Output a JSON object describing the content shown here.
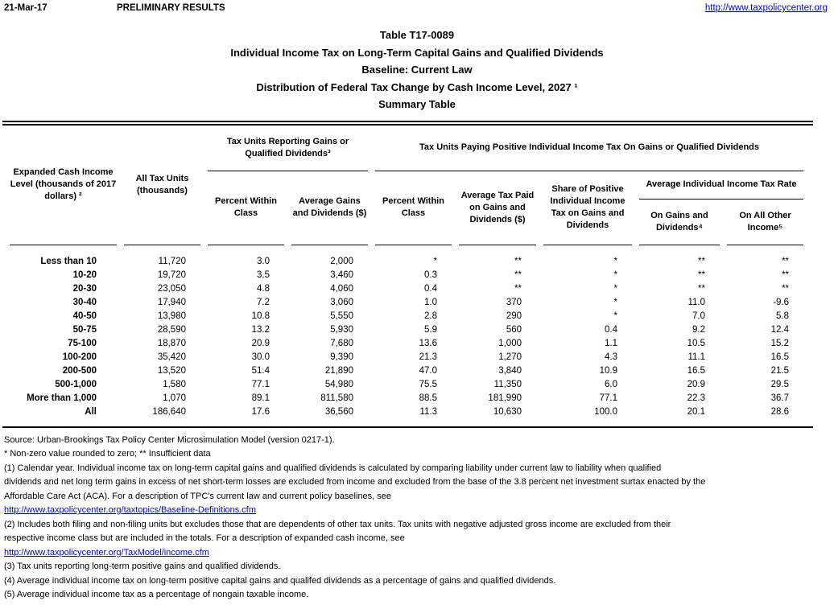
{
  "page": {
    "date": "21-Mar-17",
    "status": "PRELIMINARY RESULTS",
    "site_url": "http://www.taxpolicycenter.org"
  },
  "colors": {
    "link": "#0000EE",
    "text": "#000000",
    "background": "#FFFFFF"
  },
  "title": {
    "line1": "Table T17-0089",
    "line2": "Individual Income Tax on Long-Term Capital Gains and Qualified Dividends",
    "line3": "Baseline: Current Law",
    "line4": "Distribution of Federal Tax Change by Cash Income Level, 2027 ¹",
    "line5": "Summary Table"
  },
  "table": {
    "group_headers": {
      "reporting": "Tax Units Reporting Gains or Qualified Dividends³",
      "paying": "Tax Units Paying Positive Individual Income Tax On Gains or Qualified Dividends",
      "avg_rate": "Average Individual Income Tax Rate"
    },
    "columns": {
      "income_level": "Expanded Cash Income Level (thousands of 2017 dollars) ²",
      "all_tax_units": "All Tax Units (thousands)",
      "pct_within_class_reporting": "Percent Within Class",
      "avg_gains_dividends": "Average Gains and Dividends ($)",
      "pct_within_class_paying": "Percent Within Class",
      "avg_tax_paid": "Average Tax Paid on Gains and Dividends ($)",
      "share_positive": "Share of Positive Individual Income Tax on Gains and Dividends",
      "on_gains_dividends": "On Gains and Dividends⁴",
      "on_all_other": "On All Other Income⁵"
    },
    "rows": [
      {
        "label": "Less than 10",
        "values": [
          "11,720",
          "3.0",
          "2,000",
          "*",
          "**",
          "*",
          "**",
          "**"
        ]
      },
      {
        "label": "10-20",
        "values": [
          "19,720",
          "3.5",
          "3,460",
          "0.3",
          "**",
          "*",
          "**",
          "**"
        ]
      },
      {
        "label": "20-30",
        "values": [
          "23,050",
          "4.8",
          "4,060",
          "0.4",
          "**",
          "*",
          "**",
          "**"
        ]
      },
      {
        "label": "30-40",
        "values": [
          "17,940",
          "7.2",
          "3,060",
          "1.0",
          "370",
          "*",
          "11.0",
          "-9.6"
        ]
      },
      {
        "label": "40-50",
        "values": [
          "13,980",
          "10.8",
          "5,550",
          "2.8",
          "290",
          "*",
          "7.0",
          "5.8"
        ]
      },
      {
        "label": "50-75",
        "values": [
          "28,590",
          "13.2",
          "5,930",
          "5.9",
          "560",
          "0.4",
          "9.2",
          "12.4"
        ]
      },
      {
        "label": "75-100",
        "values": [
          "18,870",
          "20.9",
          "7,680",
          "13.6",
          "1,000",
          "1.1",
          "10.5",
          "15.2"
        ]
      },
      {
        "label": "100-200",
        "values": [
          "35,420",
          "30.0",
          "9,390",
          "21.3",
          "1,270",
          "4.3",
          "11.1",
          "16.5"
        ]
      },
      {
        "label": "200-500",
        "values": [
          "13,520",
          "51.4",
          "21,890",
          "47.0",
          "3,840",
          "10.9",
          "16.5",
          "21.5"
        ]
      },
      {
        "label": "500-1,000",
        "values": [
          "1,580",
          "77.1",
          "54,980",
          "75.5",
          "11,350",
          "6.0",
          "20.9",
          "29.5"
        ]
      },
      {
        "label": "More than 1,000",
        "values": [
          "1,070",
          "89.1",
          "811,580",
          "88.5",
          "181,990",
          "77.1",
          "22.3",
          "36.7"
        ]
      },
      {
        "label": "All",
        "values": [
          "186,640",
          "17.6",
          "36,560",
          "11.3",
          "10,630",
          "100.0",
          "20.1",
          "28.6"
        ]
      }
    ]
  },
  "footnotes": [
    {
      "text": "Source: Urban-Brookings Tax Policy Center Microsimulation Model (version 0217-1).",
      "link": false
    },
    {
      "text": "* Non-zero value rounded to zero; ** Insufficient data",
      "link": false
    },
    {
      "text": "(1) Calendar year. Individual income tax on long-term capital gains and qualified dividends is calculated by comparing liability under current law to liability when qualified",
      "link": false
    },
    {
      "text": "dividends and net long term gains in excess of net short-term losses are excluded from income and excluded from the base of the 3.8 percent net investment surtax enacted by the",
      "link": false
    },
    {
      "text": "Affordable Care Act (ACA). For a description of TPC's current law and current policy baselines, see",
      "link": false
    },
    {
      "text": "http://www.taxpolicycenter.org/taxtopics/Baseline-Definitions.cfm",
      "link": true
    },
    {
      "text": "(2) Includes both filing and non-filing units but excludes those that are dependents of other tax units. Tax units with negative adjusted gross income are excluded from their",
      "link": false
    },
    {
      "text": "respective income class but are included in the totals. For a description of expanded cash income, see",
      "link": false
    },
    {
      "text": "http://www.taxpolicycenter.org/TaxModel/income.cfm",
      "link": true
    },
    {
      "text": "(3) Tax units reporting long-term positive gains and qualified dividends.",
      "link": false
    },
    {
      "text": "(4) Average individual income tax on long-term positive capital gains and qualifed dividends as a percentage of gains and qualified dividends.",
      "link": false
    },
    {
      "text": "(5) Average individual income tax as a percentage of nongain taxable income.",
      "link": false
    }
  ]
}
